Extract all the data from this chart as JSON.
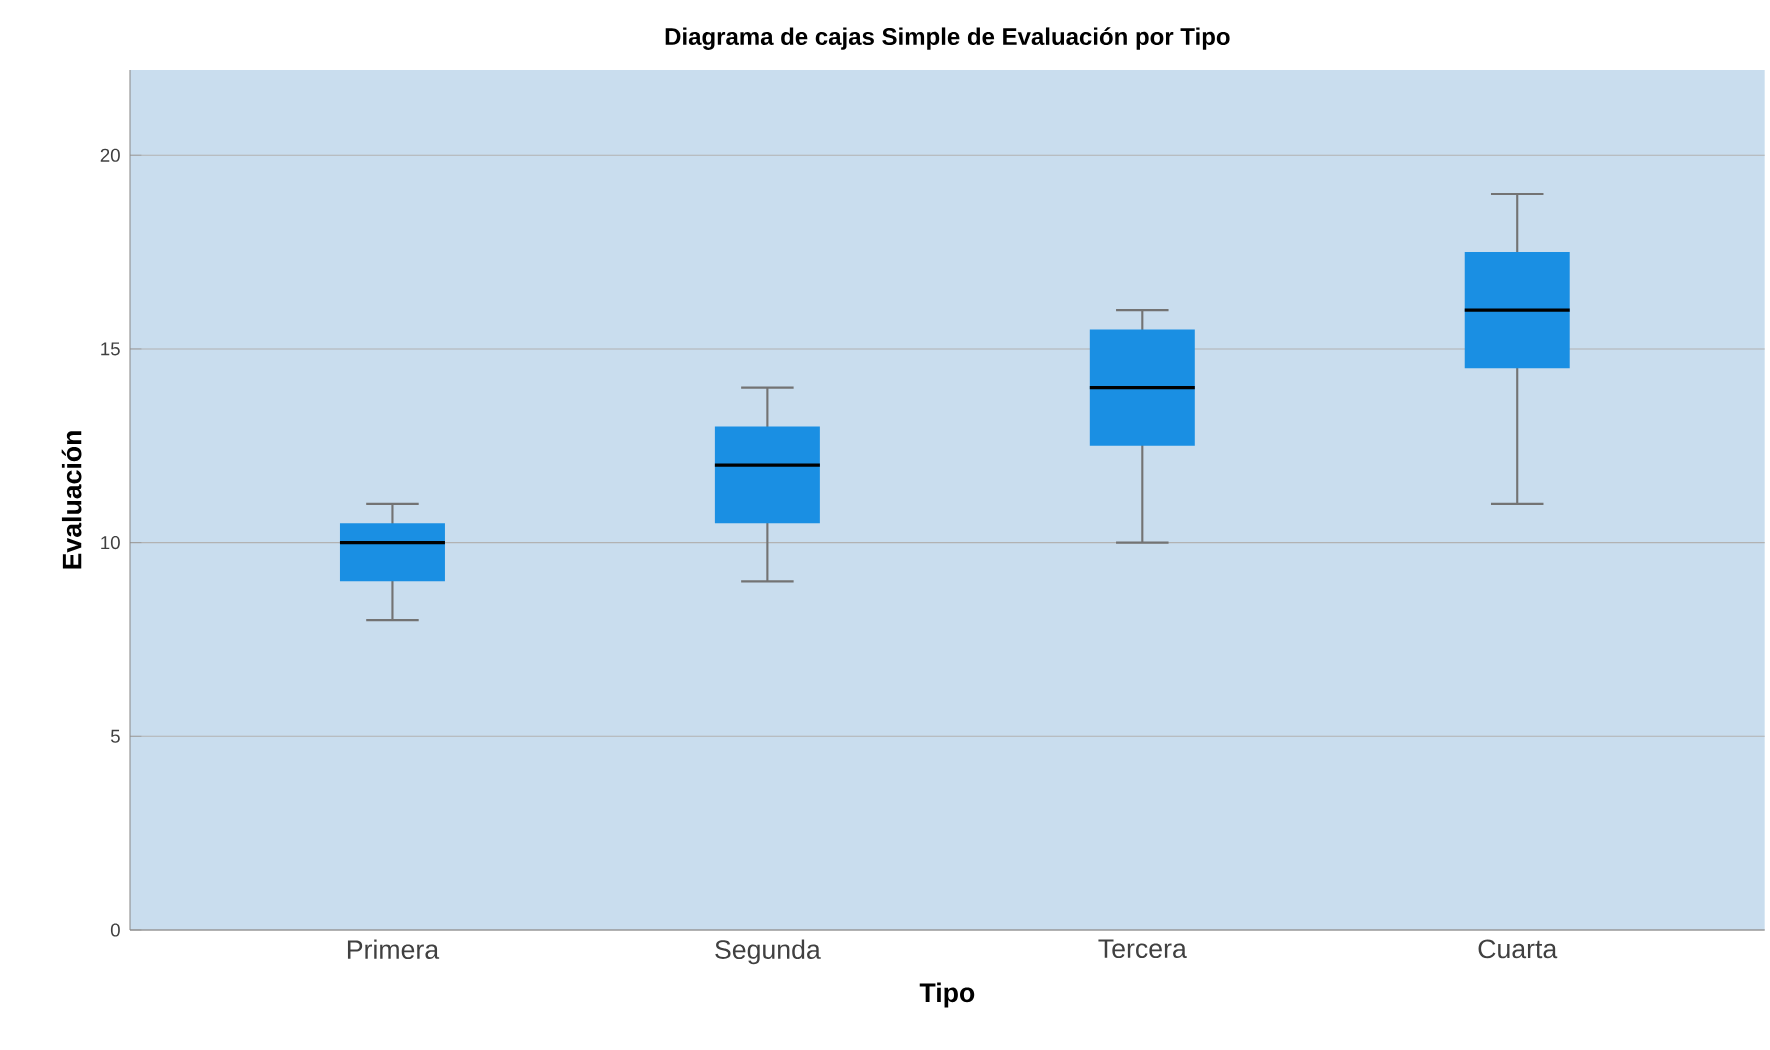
{
  "chart_data": {
    "type": "box",
    "title": "Diagrama de cajas Simple de Evaluación  por Tipo",
    "xlabel": "Tipo",
    "ylabel": "Evaluación",
    "categories": [
      "Primera",
      "Segunda",
      "Tercera",
      "Cuarta"
    ],
    "boxes": [
      {
        "low": 8,
        "q1": 9,
        "median": 10,
        "q3": 10.5,
        "high": 11
      },
      {
        "low": 9,
        "q1": 10.5,
        "median": 12,
        "q3": 13,
        "high": 14
      },
      {
        "low": 10,
        "q1": 12.5,
        "median": 14,
        "q3": 15.5,
        "high": 16
      },
      {
        "low": 11,
        "q1": 14.5,
        "median": 16,
        "q3": 17.5,
        "high": 19
      }
    ],
    "color": "#1a8fe3",
    "ylim": [
      0,
      22.2
    ],
    "yticks": [
      0,
      5,
      10,
      15,
      20
    ],
    "grid": "y"
  }
}
